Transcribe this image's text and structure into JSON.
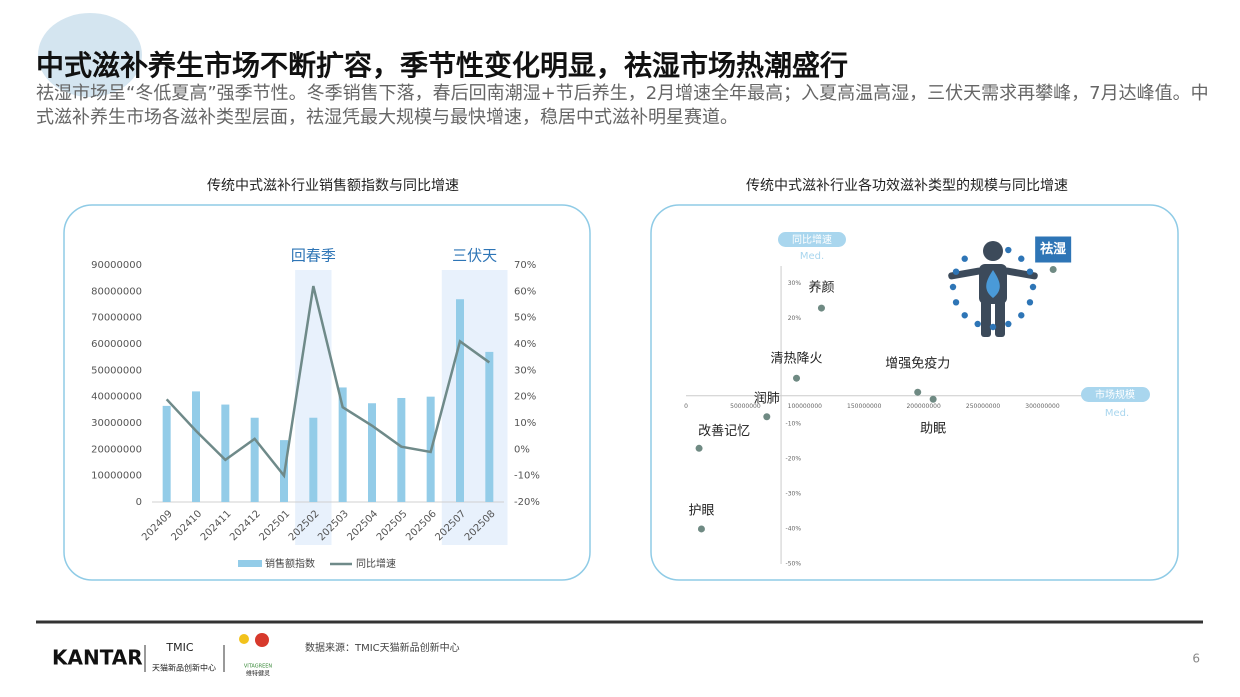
{
  "header": {
    "title": "中式滋补养生市场不断扩容，季节性变化明显，祛湿市场热潮盛行",
    "subtitle": "祛湿市场呈“冬低夏高”强季节性。冬季销售下落，春后回南潮湿+节后养生，2月增速全年最高；入夏高温高湿，三伏天需求再攀峰，7月达峰值。中式滋补养生市场各滋补类型层面，祛湿凭最大规模与最快增速，稳居中式滋补明星赛道。"
  },
  "chart_data": [
    {
      "type": "bar-line",
      "title": "传统中式滋补行业销售额指数与同比增速",
      "categories": [
        "202409",
        "202410",
        "202411",
        "202412",
        "202501",
        "202502",
        "202503",
        "202504",
        "202505",
        "202506",
        "202507",
        "202508"
      ],
      "series": [
        {
          "name": "销售额指数",
          "color": "#93cce8",
          "values": [
            36500000,
            42000000,
            37000000,
            32000000,
            23500000,
            32000000,
            43500000,
            37500000,
            39500000,
            40000000,
            77000000,
            57000000
          ]
        },
        {
          "name": "同比增速",
          "color": "#6f8a89",
          "axis": "y2",
          "values": [
            19,
            7,
            -4,
            4,
            -10,
            62,
            16,
            9,
            1,
            -1,
            41,
            33
          ]
        }
      ],
      "ylim": [
        0,
        90000000
      ],
      "yticks": [
        0,
        10000000,
        20000000,
        30000000,
        40000000,
        50000000,
        60000000,
        70000000,
        80000000,
        90000000
      ],
      "y2lim": [
        -20,
        70
      ],
      "y2ticks": [
        {
          "value": -20,
          "label": "-20%"
        },
        {
          "value": -10,
          "label": "-10%"
        },
        {
          "value": 0,
          "label": "0%"
        },
        {
          "value": 10,
          "label": "10%"
        },
        {
          "value": 20,
          "label": "20%"
        },
        {
          "value": 30,
          "label": "30%"
        },
        {
          "value": 40,
          "label": "40%"
        },
        {
          "value": 50,
          "label": "50%"
        },
        {
          "value": 60,
          "label": "60%"
        },
        {
          "value": 70,
          "label": "70%"
        }
      ],
      "highlights": [
        {
          "label": "回春季",
          "from": "202502",
          "to": "202502"
        },
        {
          "label": "三伏天",
          "from": "202507",
          "to": "202508"
        }
      ],
      "legend": "bottom"
    },
    {
      "type": "scatter",
      "title": "传统中式滋补行业各功效滋补类型的规模与同比增速",
      "xlabel": "市场规模",
      "ylabel": "同比增速",
      "median_label": "Med.",
      "x_median": 80000000,
      "y_median": -2,
      "points": [
        {
          "label": "养颜",
          "x": 114000000,
          "y": 23
        },
        {
          "label": "清热降火",
          "x": 93000000,
          "y": 3
        },
        {
          "label": "增强免疫力",
          "x": 195000000,
          "y": -1
        },
        {
          "label": "助眠",
          "x": 208000000,
          "y": -3
        },
        {
          "label": "润肺",
          "x": 68000000,
          "y": -8
        },
        {
          "label": "改善记忆",
          "x": 11000000,
          "y": -17
        },
        {
          "label": "护眼",
          "x": 13000000,
          "y": -40
        },
        {
          "label": "祛湿",
          "x": 309000000,
          "y": 34
        }
      ],
      "color": "#6f8a83",
      "highlight_color": "#2e75b6",
      "xlim": [
        0,
        340000000
      ],
      "xticks": [
        0,
        50000000,
        100000000,
        150000000,
        200000000,
        250000000,
        300000000
      ],
      "ylim": [
        -50,
        35
      ],
      "yticks": [
        {
          "value": 30,
          "label": "30%"
        },
        {
          "value": 20,
          "label": "20%"
        },
        {
          "value": -10,
          "label": "-10%"
        },
        {
          "value": -20,
          "label": "-20%"
        },
        {
          "value": -30,
          "label": "-30%"
        },
        {
          "value": -40,
          "label": "-40%"
        },
        {
          "value": -50,
          "label": "-50%"
        }
      ]
    }
  ],
  "footer": {
    "brand": "KANTAR",
    "tmic": "TMIC",
    "tmic_name": "天猫新品创新中心",
    "vita": "VITAGREEN",
    "vita_name": "维特健灵",
    "source": "数据来源：TMIC天猫新品创新中心",
    "page": "6"
  }
}
